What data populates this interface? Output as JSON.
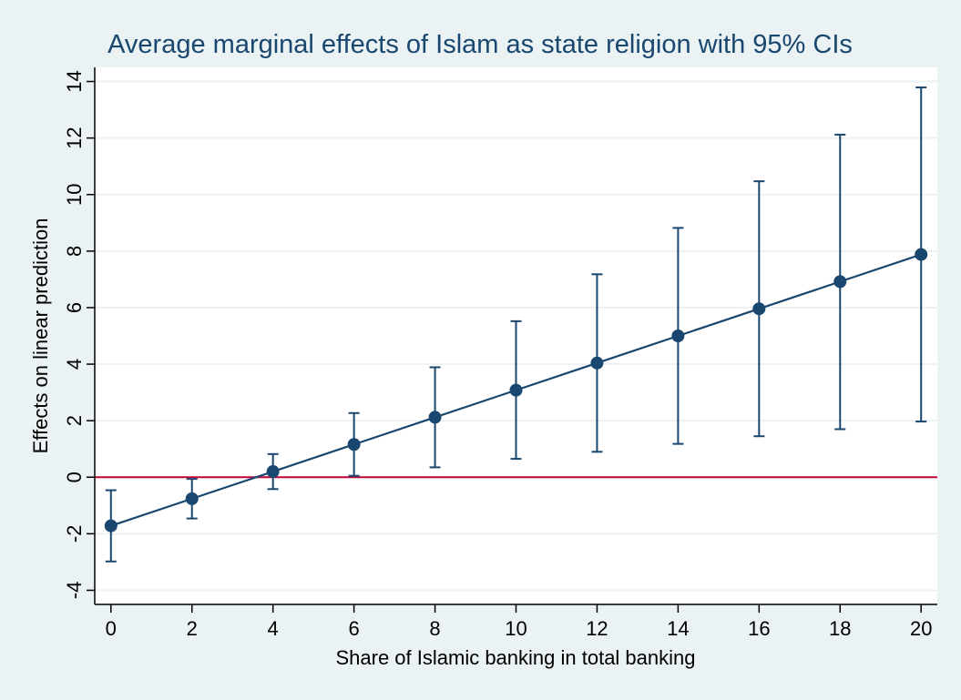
{
  "chart_data": {
    "type": "line",
    "title": "Average marginal effects of Islam as state religion with 95% CIs",
    "xlabel": "Share of Islamic banking in total banking",
    "ylabel": "Effects on linear prediction",
    "x": [
      0,
      2,
      4,
      6,
      8,
      10,
      12,
      14,
      16,
      18,
      20
    ],
    "series": [
      {
        "values": [
          -1.72,
          -0.76,
          0.2,
          1.16,
          2.12,
          3.08,
          4.04,
          5.0,
          5.96,
          6.92,
          7.88
        ],
        "ci_lower": [
          -2.98,
          -1.46,
          -0.42,
          0.05,
          0.35,
          0.65,
          0.9,
          1.18,
          1.45,
          1.7,
          1.97
        ],
        "ci_upper": [
          -0.46,
          -0.06,
          0.82,
          2.27,
          3.89,
          5.52,
          7.18,
          8.82,
          10.47,
          12.12,
          13.79
        ]
      }
    ],
    "reference_line": {
      "y": 0,
      "color": "#c10534"
    },
    "xlim": [
      -0.4,
      20.4
    ],
    "ylim": [
      -4.5,
      14.5
    ],
    "xticks": [
      0,
      2,
      4,
      6,
      8,
      10,
      12,
      14,
      16,
      18,
      20
    ],
    "yticks": [
      -4,
      -2,
      0,
      2,
      4,
      6,
      8,
      10,
      12,
      14
    ],
    "grid": true,
    "colors": {
      "series": "#1a476f",
      "background": "#eaf2f3",
      "plot_background": "#ffffff",
      "grid": "#eaf2f3"
    }
  }
}
